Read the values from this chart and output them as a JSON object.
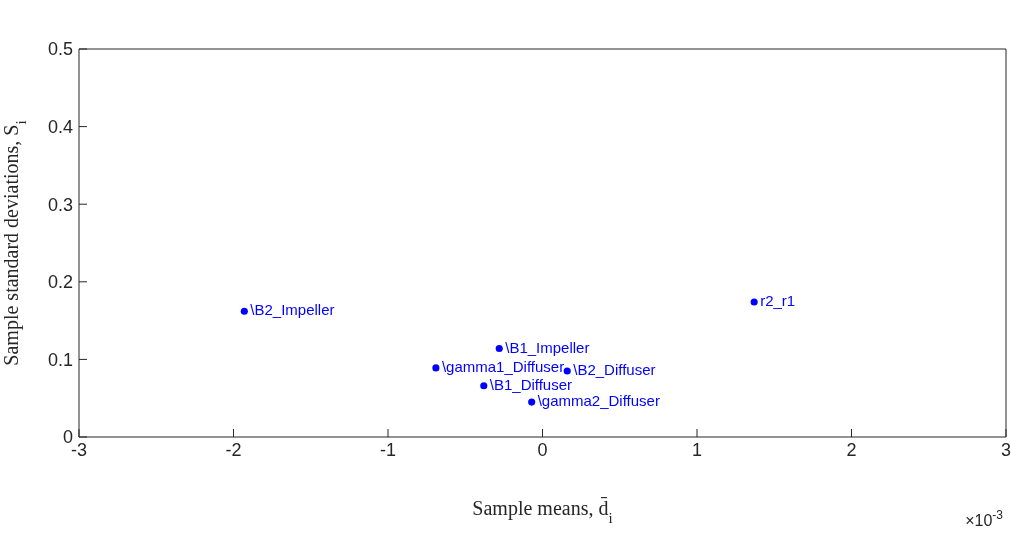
{
  "chart_data": {
    "type": "scatter",
    "xlabel": "Sample means, d̄$_{i}$",
    "ylabel": "Sample standard deviations, S$_{i}$",
    "marker": "circle",
    "x": [
      -1.93,
      1.37,
      -0.28,
      -0.69,
      0.16,
      -0.38,
      -0.07
    ],
    "series": [
      {
        "color": "#0000ff",
        "values": [
          0.162,
          0.174,
          0.114,
          0.089,
          0.085,
          0.066,
          0.045
        ],
        "value_labels": [
          "\\B2_Impeller",
          "r2_r1",
          "\\B1_Impeller",
          "\\gamma1_Diffuser",
          "\\B2_Diffuser",
          "\\B1_Diffuser",
          "\\gamma2_Diffuser"
        ]
      }
    ],
    "xlim": [
      -3,
      3
    ],
    "xticks": [
      -3,
      -2,
      -1,
      0,
      1,
      2,
      3
    ],
    "ylim": [
      0,
      0.5
    ],
    "yticks": [
      0,
      0.1,
      0.2,
      0.3,
      0.4,
      0.5
    ],
    "annotations": [
      "×10$^{-3}$"
    ]
  }
}
